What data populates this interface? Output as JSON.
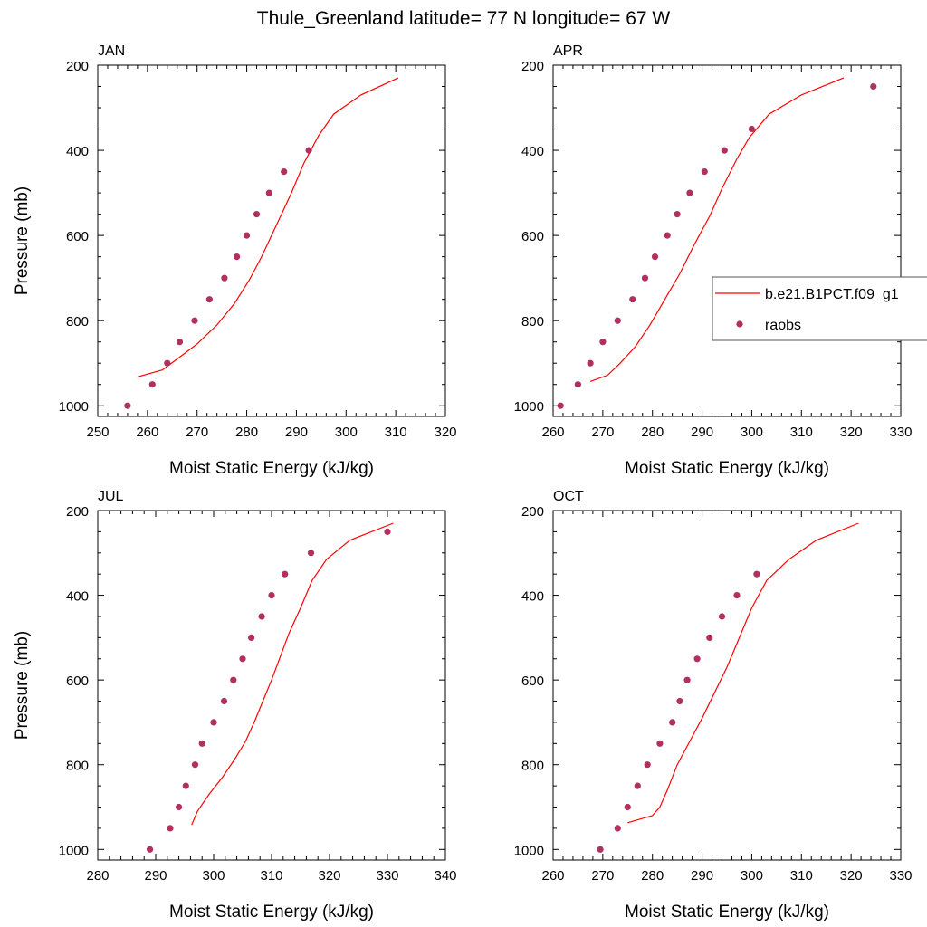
{
  "figure": {
    "title": "Thule_Greenland  latitude= 77 N longitude= 67 W"
  },
  "legend": {
    "model_label": "b.e21.B1PCT.f09_g1",
    "obs_label": "raobs",
    "model_color": "#ff0000",
    "obs_color": "#b03060"
  },
  "chart_data": [
    {
      "type": "line",
      "title": "JAN",
      "xlabel": "Moist Static Energy (kJ/kg)",
      "ylabel": "Pressure (mb)",
      "xlim": [
        250,
        320
      ],
      "ylim": [
        1025,
        200
      ],
      "xticks": [
        250,
        260,
        270,
        280,
        290,
        300,
        310,
        320
      ],
      "yticks": [
        200,
        400,
        600,
        800,
        1000
      ],
      "series": [
        {
          "name": "b.e21.B1PCT.f09_g1",
          "kind": "line",
          "x": [
            258,
            263,
            266,
            270,
            274,
            277.5,
            280.5,
            283,
            285,
            287,
            289,
            291.5,
            294.5,
            297.5,
            303,
            310.5
          ],
          "y": [
            932,
            916,
            890,
            855,
            810,
            760,
            705,
            650,
            600,
            550,
            500,
            430,
            365,
            315,
            270,
            230
          ]
        },
        {
          "name": "raobs",
          "kind": "scatter",
          "x": [
            256,
            261,
            264,
            266.5,
            269.5,
            272.5,
            275.5,
            278,
            280,
            282,
            284.5,
            287.5,
            292.5
          ],
          "y": [
            1000,
            950,
            900,
            850,
            800,
            750,
            700,
            650,
            600,
            550,
            500,
            450,
            400
          ]
        }
      ]
    },
    {
      "type": "line",
      "title": "APR",
      "xlabel": "Moist Static Energy (kJ/kg)",
      "ylabel": "",
      "xlim": [
        260,
        330
      ],
      "ylim": [
        1025,
        200
      ],
      "xticks": [
        260,
        270,
        280,
        290,
        300,
        310,
        320,
        330
      ],
      "yticks": [
        200,
        400,
        600,
        800,
        1000
      ],
      "series": [
        {
          "name": "b.e21.B1PCT.f09_g1",
          "kind": "line",
          "x": [
            267.5,
            271,
            273.5,
            276.5,
            279.5,
            282.5,
            285.5,
            288.5,
            291.5,
            294,
            297,
            299.5,
            303.5,
            310,
            318.5
          ],
          "y": [
            943,
            928,
            900,
            862,
            810,
            750,
            690,
            620,
            555,
            490,
            420,
            370,
            315,
            270,
            230
          ]
        },
        {
          "name": "raobs",
          "kind": "scatter",
          "x": [
            261.5,
            265,
            267.5,
            270,
            273,
            276,
            278.5,
            280.5,
            283,
            285,
            287.5,
            290.5,
            294.5,
            300,
            324.5
          ],
          "y": [
            1000,
            950,
            900,
            850,
            800,
            750,
            700,
            650,
            600,
            550,
            500,
            450,
            400,
            350,
            250
          ]
        }
      ]
    },
    {
      "type": "line",
      "title": "JUL",
      "xlabel": "Moist Static Energy (kJ/kg)",
      "ylabel": "Pressure (mb)",
      "xlim": [
        280,
        340
      ],
      "ylim": [
        1025,
        200
      ],
      "xticks": [
        280,
        290,
        300,
        310,
        320,
        330,
        340
      ],
      "yticks": [
        200,
        400,
        600,
        800,
        1000
      ],
      "series": [
        {
          "name": "b.e21.B1PCT.f09_g1",
          "kind": "line",
          "x": [
            296.2,
            297.2,
            299.2,
            301.5,
            303.5,
            305.5,
            307,
            308.5,
            310,
            311.5,
            313,
            315,
            317,
            319.5,
            323.5,
            331
          ],
          "y": [
            942,
            910,
            870,
            830,
            790,
            745,
            700,
            650,
            600,
            545,
            490,
            430,
            365,
            315,
            270,
            230
          ]
        },
        {
          "name": "raobs",
          "kind": "scatter",
          "x": [
            289,
            292.5,
            294,
            295.2,
            296.8,
            298,
            300,
            301.8,
            303.4,
            305,
            306.5,
            308.3,
            310,
            312.3,
            316.8,
            330
          ],
          "y": [
            1000,
            950,
            900,
            850,
            800,
            750,
            700,
            650,
            600,
            550,
            500,
            450,
            400,
            350,
            300,
            250
          ]
        }
      ]
    },
    {
      "type": "line",
      "title": "OCT",
      "xlabel": "Moist Static Energy (kJ/kg)",
      "ylabel": "",
      "xlim": [
        260,
        330
      ],
      "ylim": [
        1025,
        200
      ],
      "xticks": [
        260,
        270,
        280,
        290,
        300,
        310,
        320,
        330
      ],
      "yticks": [
        200,
        400,
        600,
        800,
        1000
      ],
      "series": [
        {
          "name": "b.e21.B1PCT.f09_g1",
          "kind": "line",
          "x": [
            275,
            280,
            281.5,
            283,
            285,
            287.5,
            290,
            292.5,
            295,
            297.5,
            300,
            303,
            307.5,
            313,
            321.5
          ],
          "y": [
            937,
            920,
            900,
            860,
            800,
            745,
            690,
            630,
            570,
            500,
            430,
            365,
            315,
            270,
            230
          ]
        },
        {
          "name": "raobs",
          "kind": "scatter",
          "x": [
            269.5,
            273,
            275,
            277,
            279,
            281.5,
            284,
            285.5,
            287,
            289,
            291.5,
            294,
            297,
            301
          ],
          "y": [
            1000,
            950,
            900,
            850,
            800,
            750,
            700,
            650,
            600,
            550,
            500,
            450,
            400,
            350
          ]
        }
      ]
    }
  ]
}
